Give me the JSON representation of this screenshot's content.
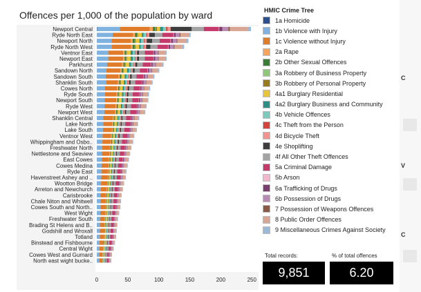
{
  "chart_data": {
    "type": "bar",
    "title": "Offences per 1,000 of the population by ward",
    "xlabel": "",
    "ylabel": "",
    "xlim": [
      0,
      260
    ],
    "xticks": [
      0,
      50,
      100,
      150,
      200,
      250
    ],
    "categories": [
      "Newport Central",
      "Ryde North East",
      "Newport North",
      "Ryde North West",
      "Ventnor East",
      "Newport East",
      "Parkhurst",
      "Sandown North",
      "Sandown South",
      "Shanklin South",
      "Cowes North",
      "Ryde South",
      "Newport South",
      "Ryde West",
      "Newport West",
      "Shanklin Central",
      "Lake North",
      "Lake South",
      "Ventnor West",
      "Whippingham and Osbo..",
      "Freshwater North",
      "Nettlestone and Seaview",
      "East Cowes",
      "Cowes Medina",
      "Ryde East",
      "Havenstreet Ashey and ..",
      "Wootton Bridge",
      "Arreton and Newchurch",
      "Carisbrooke",
      "Chale Niton and Whitwell",
      "Cowes South and North..",
      "West Wight",
      "Freshwater South",
      "Brading St Helens and B..",
      "Godshill and Wroxall",
      "Totland",
      "Binstead and Fishbourne",
      "Central Wight",
      "Cowes West and Gurnard",
      "North east wight bucke.."
    ],
    "totals": [
      243,
      150,
      148,
      141,
      115,
      115,
      110,
      103,
      95,
      92,
      88,
      86,
      85,
      82,
      80,
      70,
      68,
      66,
      62,
      60,
      57,
      55,
      53,
      51,
      49,
      48,
      45,
      43,
      41,
      40,
      39,
      37,
      35,
      34,
      33,
      32,
      30,
      28,
      25,
      24
    ],
    "series": [
      {
        "name": "1a Homicide",
        "color": "#2e4f8f",
        "shares": [
          0.002,
          0.001,
          0.001,
          0.001,
          0.001,
          0.001,
          0.001,
          0.001,
          0.001,
          0.001,
          0.001,
          0.001,
          0.001,
          0.001,
          0.001,
          0.001,
          0.001,
          0.001,
          0.001,
          0.001,
          0.001,
          0.001,
          0.001,
          0.001,
          0.001,
          0.001,
          0.001,
          0.001,
          0.001,
          0.001,
          0.001,
          0.001,
          0.001,
          0.001,
          0.001,
          0.001,
          0.001,
          0.001,
          0.001,
          0.001
        ]
      },
      {
        "name": "1b Violence with Injury",
        "color": "#7fb2df",
        "shares": [
          0.15,
          0.17,
          0.16,
          0.17,
          0.16,
          0.16,
          0.15,
          0.15,
          0.15,
          0.16,
          0.15,
          0.15,
          0.15,
          0.15,
          0.15,
          0.15,
          0.15,
          0.15,
          0.15,
          0.15,
          0.15,
          0.15,
          0.15,
          0.15,
          0.15,
          0.15,
          0.15,
          0.15,
          0.15,
          0.15,
          0.15,
          0.15,
          0.15,
          0.15,
          0.15,
          0.15,
          0.15,
          0.15,
          0.15,
          0.15
        ]
      },
      {
        "name": "1c Violence without Injury",
        "color": "#e07b2a",
        "shares": [
          0.2,
          0.22,
          0.21,
          0.22,
          0.21,
          0.21,
          0.22,
          0.22,
          0.22,
          0.21,
          0.22,
          0.22,
          0.22,
          0.22,
          0.22,
          0.22,
          0.22,
          0.22,
          0.22,
          0.22,
          0.22,
          0.22,
          0.22,
          0.22,
          0.22,
          0.22,
          0.22,
          0.22,
          0.22,
          0.22,
          0.22,
          0.22,
          0.22,
          0.22,
          0.22,
          0.22,
          0.22,
          0.22,
          0.22,
          0.22
        ]
      },
      {
        "name": "2a Rape",
        "color": "#f6a45c",
        "shares": [
          0.02,
          0.02,
          0.02,
          0.02,
          0.02,
          0.02,
          0.02,
          0.02,
          0.02,
          0.02,
          0.02,
          0.02,
          0.02,
          0.02,
          0.02,
          0.02,
          0.02,
          0.02,
          0.02,
          0.02,
          0.02,
          0.02,
          0.02,
          0.02,
          0.02,
          0.02,
          0.02,
          0.02,
          0.02,
          0.02,
          0.02,
          0.02,
          0.02,
          0.02,
          0.02,
          0.02,
          0.02,
          0.02,
          0.02,
          0.02
        ]
      },
      {
        "name": "2b Other Sexual Offences",
        "color": "#3a7d34",
        "shares": [
          0.015,
          0.02,
          0.02,
          0.02,
          0.02,
          0.02,
          0.02,
          0.02,
          0.02,
          0.02,
          0.02,
          0.02,
          0.02,
          0.02,
          0.02,
          0.02,
          0.02,
          0.02,
          0.02,
          0.02,
          0.02,
          0.02,
          0.02,
          0.02,
          0.02,
          0.02,
          0.02,
          0.02,
          0.02,
          0.02,
          0.02,
          0.02,
          0.02,
          0.02,
          0.02,
          0.02,
          0.02,
          0.02,
          0.02,
          0.02
        ]
      },
      {
        "name": "3a Robbery of Business Property",
        "color": "#8fc879",
        "shares": [
          0.003,
          0.003,
          0.003,
          0.003,
          0.003,
          0.003,
          0.003,
          0.003,
          0.003,
          0.003,
          0.003,
          0.003,
          0.003,
          0.003,
          0.003,
          0.003,
          0.003,
          0.003,
          0.003,
          0.003,
          0.003,
          0.003,
          0.003,
          0.003,
          0.003,
          0.003,
          0.003,
          0.003,
          0.003,
          0.003,
          0.003,
          0.003,
          0.003,
          0.003,
          0.003,
          0.003,
          0.003,
          0.003,
          0.003,
          0.003
        ]
      },
      {
        "name": "3b Robbery of Personal Property",
        "color": "#9a7a1e",
        "shares": [
          0.01,
          0.01,
          0.01,
          0.01,
          0.01,
          0.01,
          0.01,
          0.01,
          0.01,
          0.01,
          0.01,
          0.01,
          0.01,
          0.01,
          0.01,
          0.01,
          0.01,
          0.01,
          0.01,
          0.01,
          0.01,
          0.01,
          0.01,
          0.01,
          0.01,
          0.01,
          0.01,
          0.01,
          0.01,
          0.01,
          0.01,
          0.01,
          0.01,
          0.01,
          0.01,
          0.01,
          0.01,
          0.01,
          0.01,
          0.01
        ]
      },
      {
        "name": "4a1 Burglary Residential",
        "color": "#e8c43a",
        "shares": [
          0.02,
          0.04,
          0.04,
          0.04,
          0.05,
          0.05,
          0.05,
          0.05,
          0.05,
          0.05,
          0.05,
          0.05,
          0.05,
          0.05,
          0.05,
          0.05,
          0.05,
          0.05,
          0.05,
          0.05,
          0.05,
          0.05,
          0.05,
          0.05,
          0.05,
          0.05,
          0.05,
          0.05,
          0.05,
          0.05,
          0.05,
          0.05,
          0.05,
          0.05,
          0.05,
          0.05,
          0.05,
          0.05,
          0.05,
          0.05
        ]
      },
      {
        "name": "4a2 Burglary Business and Community",
        "color": "#2b8f86",
        "shares": [
          0.02,
          0.02,
          0.02,
          0.02,
          0.03,
          0.03,
          0.03,
          0.03,
          0.03,
          0.03,
          0.03,
          0.03,
          0.03,
          0.03,
          0.03,
          0.03,
          0.03,
          0.03,
          0.03,
          0.03,
          0.03,
          0.03,
          0.03,
          0.03,
          0.03,
          0.03,
          0.03,
          0.03,
          0.03,
          0.03,
          0.03,
          0.03,
          0.03,
          0.03,
          0.03,
          0.03,
          0.03,
          0.03,
          0.03,
          0.03
        ]
      },
      {
        "name": "4b Vehicle Offences",
        "color": "#7cc9bd",
        "shares": [
          0.02,
          0.03,
          0.03,
          0.03,
          0.03,
          0.03,
          0.03,
          0.03,
          0.03,
          0.03,
          0.03,
          0.03,
          0.03,
          0.03,
          0.03,
          0.03,
          0.03,
          0.03,
          0.03,
          0.03,
          0.03,
          0.03,
          0.03,
          0.03,
          0.03,
          0.03,
          0.03,
          0.03,
          0.03,
          0.03,
          0.03,
          0.03,
          0.03,
          0.03,
          0.03,
          0.03,
          0.03,
          0.03,
          0.03,
          0.03
        ]
      },
      {
        "name": "4c Theft from the Person",
        "color": "#d8423c",
        "shares": [
          0.01,
          0.01,
          0.01,
          0.01,
          0.01,
          0.01,
          0.01,
          0.01,
          0.01,
          0.01,
          0.01,
          0.01,
          0.01,
          0.01,
          0.01,
          0.01,
          0.01,
          0.01,
          0.01,
          0.01,
          0.01,
          0.01,
          0.01,
          0.01,
          0.01,
          0.01,
          0.01,
          0.01,
          0.01,
          0.01,
          0.01,
          0.01,
          0.01,
          0.01,
          0.01,
          0.01,
          0.01,
          0.01,
          0.01,
          0.01
        ]
      },
      {
        "name": "4d Bicycle Theft",
        "color": "#f29390",
        "shares": [
          0.02,
          0.02,
          0.02,
          0.02,
          0.02,
          0.02,
          0.02,
          0.02,
          0.02,
          0.02,
          0.02,
          0.02,
          0.02,
          0.02,
          0.02,
          0.02,
          0.02,
          0.02,
          0.02,
          0.02,
          0.02,
          0.02,
          0.02,
          0.02,
          0.02,
          0.02,
          0.02,
          0.02,
          0.02,
          0.02,
          0.02,
          0.02,
          0.02,
          0.02,
          0.02,
          0.02,
          0.02,
          0.02,
          0.02,
          0.02
        ]
      },
      {
        "name": "4e Shoplifting",
        "color": "#3d3d3d",
        "shares": [
          0.14,
          0.06,
          0.06,
          0.05,
          0.03,
          0.03,
          0.03,
          0.03,
          0.03,
          0.03,
          0.03,
          0.03,
          0.03,
          0.03,
          0.03,
          0.03,
          0.03,
          0.03,
          0.03,
          0.03,
          0.03,
          0.03,
          0.03,
          0.03,
          0.03,
          0.03,
          0.03,
          0.03,
          0.03,
          0.03,
          0.03,
          0.03,
          0.03,
          0.03,
          0.03,
          0.03,
          0.03,
          0.03,
          0.03,
          0.03
        ]
      },
      {
        "name": "4f All Other Theft Offences",
        "color": "#a3a3a3",
        "shares": [
          0.08,
          0.08,
          0.08,
          0.08,
          0.08,
          0.08,
          0.08,
          0.08,
          0.08,
          0.08,
          0.08,
          0.08,
          0.08,
          0.08,
          0.08,
          0.08,
          0.08,
          0.08,
          0.08,
          0.08,
          0.08,
          0.08,
          0.08,
          0.08,
          0.08,
          0.08,
          0.08,
          0.08,
          0.08,
          0.08,
          0.08,
          0.08,
          0.08,
          0.08,
          0.08,
          0.08,
          0.08,
          0.08,
          0.08,
          0.08
        ]
      },
      {
        "name": "5a Criminal Damage",
        "color": "#c43a6b",
        "shares": [
          0.1,
          0.12,
          0.12,
          0.12,
          0.12,
          0.12,
          0.12,
          0.12,
          0.12,
          0.12,
          0.12,
          0.12,
          0.12,
          0.12,
          0.12,
          0.12,
          0.12,
          0.12,
          0.12,
          0.12,
          0.12,
          0.12,
          0.12,
          0.12,
          0.12,
          0.12,
          0.12,
          0.12,
          0.12,
          0.12,
          0.12,
          0.12,
          0.12,
          0.12,
          0.12,
          0.12,
          0.12,
          0.12,
          0.12,
          0.12
        ]
      },
      {
        "name": "5b Arson",
        "color": "#f2b6cf",
        "shares": [
          0.003,
          0.005,
          0.005,
          0.005,
          0.005,
          0.005,
          0.005,
          0.005,
          0.005,
          0.005,
          0.005,
          0.005,
          0.005,
          0.005,
          0.005,
          0.005,
          0.005,
          0.005,
          0.005,
          0.005,
          0.005,
          0.005,
          0.005,
          0.005,
          0.005,
          0.005,
          0.005,
          0.005,
          0.005,
          0.005,
          0.005,
          0.005,
          0.005,
          0.005,
          0.005,
          0.005,
          0.005,
          0.005,
          0.005,
          0.005
        ]
      },
      {
        "name": "6a Trafficking of Drugs",
        "color": "#7a3d6e",
        "shares": [
          0.02,
          0.02,
          0.02,
          0.02,
          0.02,
          0.02,
          0.02,
          0.02,
          0.02,
          0.02,
          0.02,
          0.02,
          0.02,
          0.02,
          0.02,
          0.02,
          0.02,
          0.02,
          0.02,
          0.02,
          0.02,
          0.02,
          0.02,
          0.02,
          0.02,
          0.02,
          0.02,
          0.02,
          0.02,
          0.02,
          0.02,
          0.02,
          0.02,
          0.02,
          0.02,
          0.02,
          0.02,
          0.02,
          0.02,
          0.02
        ]
      },
      {
        "name": "6b Possession of Drugs",
        "color": "#b98bb4",
        "shares": [
          0.04,
          0.04,
          0.04,
          0.04,
          0.04,
          0.04,
          0.04,
          0.04,
          0.04,
          0.04,
          0.04,
          0.04,
          0.04,
          0.04,
          0.04,
          0.04,
          0.04,
          0.04,
          0.04,
          0.04,
          0.04,
          0.04,
          0.04,
          0.04,
          0.04,
          0.04,
          0.04,
          0.04,
          0.04,
          0.04,
          0.04,
          0.04,
          0.04,
          0.04,
          0.04,
          0.04,
          0.04,
          0.04,
          0.04,
          0.04
        ]
      },
      {
        "name": "7 Possession of Weapons Offences",
        "color": "#8a5a45",
        "shares": [
          0.01,
          0.01,
          0.01,
          0.01,
          0.01,
          0.01,
          0.01,
          0.01,
          0.01,
          0.01,
          0.01,
          0.01,
          0.01,
          0.01,
          0.01,
          0.01,
          0.01,
          0.01,
          0.01,
          0.01,
          0.01,
          0.01,
          0.01,
          0.01,
          0.01,
          0.01,
          0.01,
          0.01,
          0.01,
          0.01,
          0.01,
          0.01,
          0.01,
          0.01,
          0.01,
          0.01,
          0.01,
          0.01,
          0.01,
          0.01
        ]
      },
      {
        "name": "8 Public Order Offences",
        "color": "#d8a693",
        "shares": [
          0.12,
          0.09,
          0.1,
          0.09,
          0.09,
          0.09,
          0.09,
          0.09,
          0.09,
          0.09,
          0.09,
          0.09,
          0.09,
          0.09,
          0.09,
          0.09,
          0.09,
          0.09,
          0.09,
          0.09,
          0.09,
          0.09,
          0.09,
          0.09,
          0.09,
          0.09,
          0.09,
          0.09,
          0.09,
          0.09,
          0.09,
          0.09,
          0.09,
          0.09,
          0.09,
          0.09,
          0.09,
          0.09,
          0.09,
          0.09
        ]
      },
      {
        "name": "9 Miscellaneous Crimes Against Society",
        "color": "#9ab8d8",
        "shares": [
          0.02,
          0.02,
          0.02,
          0.02,
          0.02,
          0.02,
          0.02,
          0.02,
          0.02,
          0.02,
          0.02,
          0.02,
          0.02,
          0.02,
          0.02,
          0.02,
          0.02,
          0.02,
          0.02,
          0.02,
          0.02,
          0.02,
          0.02,
          0.02,
          0.02,
          0.02,
          0.02,
          0.02,
          0.02,
          0.02,
          0.02,
          0.02,
          0.02,
          0.02,
          0.02,
          0.02,
          0.02,
          0.02,
          0.02,
          0.02
        ]
      }
    ],
    "legend_title": "HMIC Crime Tree",
    "legend_position": "right",
    "grid": false
  },
  "kpis": {
    "total_records_label": "Total records:",
    "total_records_value": "9,851",
    "pct_label": "% of total offences",
    "pct_value": "6.20"
  },
  "right_strip": {
    "chars": [
      "C",
      "V",
      "C"
    ]
  }
}
